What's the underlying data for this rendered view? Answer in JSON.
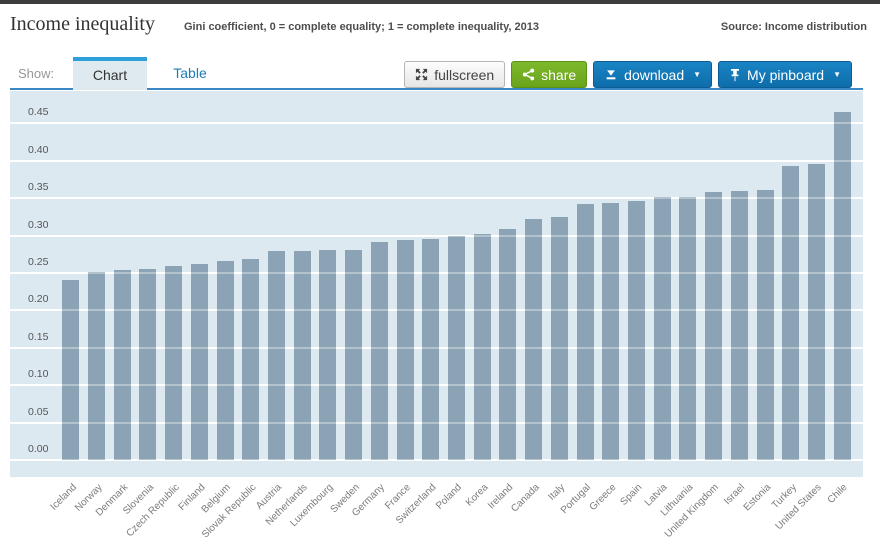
{
  "header": {
    "title": "Income inequality",
    "subtitle": "Gini coefficient, 0 = complete equality; 1 = complete inequality, 2013",
    "source": "Source: Income distribution"
  },
  "toolbar": {
    "show_label": "Show:",
    "tabs": [
      {
        "label": "Chart",
        "active": true
      },
      {
        "label": "Table",
        "active": false
      }
    ],
    "buttons": {
      "fullscreen": {
        "label": "fullscreen",
        "icon": "expand-arrows-icon"
      },
      "share": {
        "label": "share",
        "icon": "share-icon"
      },
      "download": {
        "label": "download",
        "icon": "download-icon",
        "caret": "▼"
      },
      "pinboard": {
        "label": "My pinboard",
        "icon": "pin-icon",
        "caret": "▼"
      }
    }
  },
  "colors": {
    "accent_tab": "#2da0d9",
    "tab_underline": "#3a87c4",
    "link_blue": "#1d7db9",
    "button_blue": "#1076b5",
    "button_green": "#72ad25",
    "top_rule": "#3c3c3c"
  },
  "chart_data": {
    "type": "bar",
    "title": "Income inequality",
    "subtitle": "Gini coefficient, 0 = complete equality; 1 = complete inequality, 2013",
    "year": "2013",
    "categories": [
      "Iceland",
      "Norway",
      "Denmark",
      "Slovenia",
      "Czech Republic",
      "Finland",
      "Belgium",
      "Slovak Republic",
      "Austria",
      "Netherlands",
      "Luxembourg",
      "Sweden",
      "Germany",
      "France",
      "Switzerland",
      "Poland",
      "Korea",
      "Ireland",
      "Canada",
      "Italy",
      "Portugal",
      "Greece",
      "Spain",
      "Latvia",
      "Lithuania",
      "United Kingdom",
      "Israel",
      "Estonia",
      "Turkey",
      "United States",
      "Chile"
    ],
    "values": [
      0.241,
      0.252,
      0.254,
      0.255,
      0.259,
      0.262,
      0.266,
      0.269,
      0.279,
      0.28,
      0.281,
      0.281,
      0.292,
      0.294,
      0.295,
      0.3,
      0.302,
      0.309,
      0.322,
      0.325,
      0.342,
      0.343,
      0.346,
      0.351,
      0.352,
      0.358,
      0.36,
      0.361,
      0.393,
      0.396,
      0.465
    ],
    "ylim": [
      0,
      0.49
    ],
    "yticks": [
      0.0,
      0.05,
      0.1,
      0.15,
      0.2,
      0.25,
      0.3,
      0.35,
      0.4,
      0.45
    ],
    "grid": true,
    "legend_position": "none",
    "bar_color": "#8ba3b4",
    "plot_bg": "#dde9f1",
    "gridline_color": "#ffffff"
  }
}
